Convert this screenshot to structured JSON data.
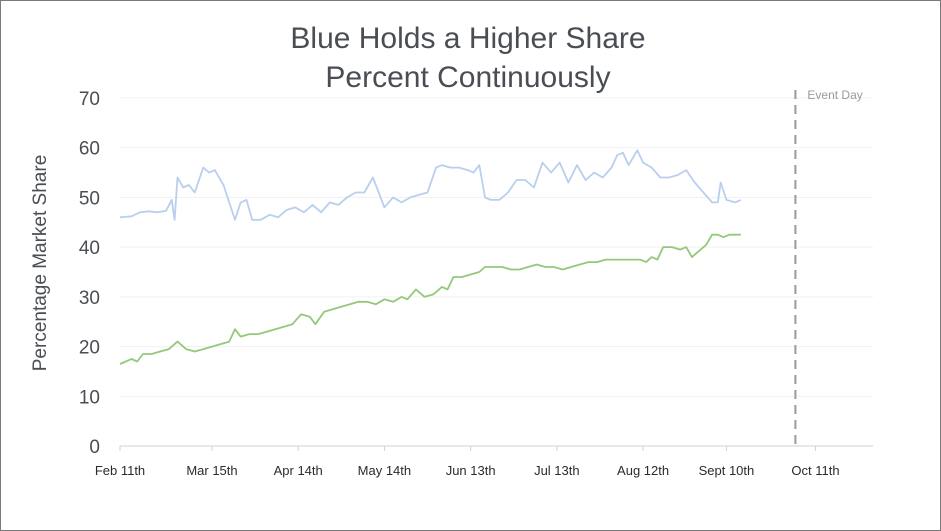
{
  "chart_data": {
    "type": "line",
    "title_lines": [
      "Blue Holds a Higher Share",
      "Percent Continuously"
    ],
    "ylabel": "Percentage Market Share",
    "ylim": [
      0,
      70
    ],
    "yticks": [
      0,
      10,
      20,
      30,
      40,
      50,
      60,
      70
    ],
    "xlim": [
      "2015-02-11",
      "2015-10-31"
    ],
    "xticks": [
      {
        "date": "2015-02-11",
        "label": "Feb 11th"
      },
      {
        "date": "2015-03-15",
        "label": "Mar 15th"
      },
      {
        "date": "2015-04-14",
        "label": "Apr 14th"
      },
      {
        "date": "2015-05-14",
        "label": "May 14th"
      },
      {
        "date": "2015-06-13",
        "label": "Jun 13th"
      },
      {
        "date": "2015-07-13",
        "label": "Jul 13th"
      },
      {
        "date": "2015-08-12",
        "label": "Aug 12th"
      },
      {
        "date": "2015-09-10",
        "label": "Sept 10th"
      },
      {
        "date": "2015-10-11",
        "label": "Oct 11th"
      }
    ],
    "grid": true,
    "event_marker": {
      "date": "2015-10-04",
      "label": "Event Day"
    },
    "series": [
      {
        "color": "#b9cfee",
        "points": [
          [
            "2015-02-11",
            46
          ],
          [
            "2015-02-15",
            46.2
          ],
          [
            "2015-02-18",
            47
          ],
          [
            "2015-02-21",
            47.2
          ],
          [
            "2015-02-24",
            47
          ],
          [
            "2015-02-27",
            47.3
          ],
          [
            "2015-03-01",
            49.5
          ],
          [
            "2015-03-02",
            45.5
          ],
          [
            "2015-03-03",
            54
          ],
          [
            "2015-03-05",
            52
          ],
          [
            "2015-03-07",
            52.5
          ],
          [
            "2015-03-09",
            51
          ],
          [
            "2015-03-12",
            56
          ],
          [
            "2015-03-14",
            55
          ],
          [
            "2015-03-16",
            55.5
          ],
          [
            "2015-03-19",
            52.5
          ],
          [
            "2015-03-21",
            49
          ],
          [
            "2015-03-23",
            45.5
          ],
          [
            "2015-03-25",
            49
          ],
          [
            "2015-03-27",
            49.5
          ],
          [
            "2015-03-29",
            45.5
          ],
          [
            "2015-04-01",
            45.5
          ],
          [
            "2015-04-04",
            46.5
          ],
          [
            "2015-04-07",
            46
          ],
          [
            "2015-04-10",
            47.5
          ],
          [
            "2015-04-13",
            48
          ],
          [
            "2015-04-16",
            47
          ],
          [
            "2015-04-19",
            48.5
          ],
          [
            "2015-04-22",
            47
          ],
          [
            "2015-04-25",
            49
          ],
          [
            "2015-04-28",
            48.5
          ],
          [
            "2015-05-01",
            50
          ],
          [
            "2015-05-04",
            51
          ],
          [
            "2015-05-07",
            51
          ],
          [
            "2015-05-10",
            54
          ],
          [
            "2015-05-12",
            51
          ],
          [
            "2015-05-14",
            48
          ],
          [
            "2015-05-17",
            50
          ],
          [
            "2015-05-20",
            49
          ],
          [
            "2015-05-23",
            50
          ],
          [
            "2015-05-26",
            50.5
          ],
          [
            "2015-05-29",
            51
          ],
          [
            "2015-06-01",
            56
          ],
          [
            "2015-06-03",
            56.5
          ],
          [
            "2015-06-06",
            56
          ],
          [
            "2015-06-09",
            56
          ],
          [
            "2015-06-12",
            55.5
          ],
          [
            "2015-06-14",
            55
          ],
          [
            "2015-06-16",
            56.5
          ],
          [
            "2015-06-18",
            50
          ],
          [
            "2015-06-20",
            49.5
          ],
          [
            "2015-06-23",
            49.5
          ],
          [
            "2015-06-26",
            51
          ],
          [
            "2015-06-29",
            53.5
          ],
          [
            "2015-07-02",
            53.5
          ],
          [
            "2015-07-05",
            52
          ],
          [
            "2015-07-08",
            57
          ],
          [
            "2015-07-11",
            55
          ],
          [
            "2015-07-14",
            57
          ],
          [
            "2015-07-17",
            53
          ],
          [
            "2015-07-20",
            56.5
          ],
          [
            "2015-07-23",
            53.5
          ],
          [
            "2015-07-26",
            55
          ],
          [
            "2015-07-29",
            54
          ],
          [
            "2015-08-01",
            56
          ],
          [
            "2015-08-03",
            58.5
          ],
          [
            "2015-08-05",
            59
          ],
          [
            "2015-08-07",
            56.5
          ],
          [
            "2015-08-10",
            59.5
          ],
          [
            "2015-08-12",
            57
          ],
          [
            "2015-08-15",
            56
          ],
          [
            "2015-08-18",
            54
          ],
          [
            "2015-08-21",
            54
          ],
          [
            "2015-08-24",
            54.5
          ],
          [
            "2015-08-27",
            55.5
          ],
          [
            "2015-08-30",
            53
          ],
          [
            "2015-09-02",
            51
          ],
          [
            "2015-09-05",
            49
          ],
          [
            "2015-09-07",
            49
          ],
          [
            "2015-09-08",
            53
          ],
          [
            "2015-09-10",
            49.5
          ],
          [
            "2015-09-13",
            49
          ],
          [
            "2015-09-15",
            49.5
          ]
        ]
      },
      {
        "color": "#93c97a",
        "points": [
          [
            "2015-02-11",
            16.5
          ],
          [
            "2015-02-13",
            17
          ],
          [
            "2015-02-15",
            17.5
          ],
          [
            "2015-02-17",
            17
          ],
          [
            "2015-02-19",
            18.5
          ],
          [
            "2015-02-22",
            18.5
          ],
          [
            "2015-02-25",
            19
          ],
          [
            "2015-02-28",
            19.5
          ],
          [
            "2015-03-03",
            21
          ],
          [
            "2015-03-06",
            19.5
          ],
          [
            "2015-03-09",
            19
          ],
          [
            "2015-03-12",
            19.5
          ],
          [
            "2015-03-15",
            20
          ],
          [
            "2015-03-18",
            20.5
          ],
          [
            "2015-03-21",
            21
          ],
          [
            "2015-03-23",
            23.5
          ],
          [
            "2015-03-25",
            22
          ],
          [
            "2015-03-28",
            22.5
          ],
          [
            "2015-03-31",
            22.5
          ],
          [
            "2015-04-03",
            23
          ],
          [
            "2015-04-06",
            23.5
          ],
          [
            "2015-04-09",
            24
          ],
          [
            "2015-04-12",
            24.5
          ],
          [
            "2015-04-15",
            26.5
          ],
          [
            "2015-04-18",
            26
          ],
          [
            "2015-04-20",
            24.5
          ],
          [
            "2015-04-23",
            27
          ],
          [
            "2015-04-26",
            27.5
          ],
          [
            "2015-04-29",
            28
          ],
          [
            "2015-05-02",
            28.5
          ],
          [
            "2015-05-05",
            29
          ],
          [
            "2015-05-08",
            29
          ],
          [
            "2015-05-11",
            28.5
          ],
          [
            "2015-05-14",
            29.5
          ],
          [
            "2015-05-17",
            29
          ],
          [
            "2015-05-20",
            30
          ],
          [
            "2015-05-22",
            29.5
          ],
          [
            "2015-05-25",
            31.5
          ],
          [
            "2015-05-28",
            30
          ],
          [
            "2015-05-31",
            30.5
          ],
          [
            "2015-06-03",
            32
          ],
          [
            "2015-06-05",
            31.5
          ],
          [
            "2015-06-07",
            34
          ],
          [
            "2015-06-10",
            34
          ],
          [
            "2015-06-13",
            34.5
          ],
          [
            "2015-06-16",
            35
          ],
          [
            "2015-06-18",
            36
          ],
          [
            "2015-06-21",
            36
          ],
          [
            "2015-06-24",
            36
          ],
          [
            "2015-06-27",
            35.5
          ],
          [
            "2015-06-30",
            35.5
          ],
          [
            "2015-07-03",
            36
          ],
          [
            "2015-07-06",
            36.5
          ],
          [
            "2015-07-09",
            36
          ],
          [
            "2015-07-12",
            36
          ],
          [
            "2015-07-15",
            35.5
          ],
          [
            "2015-07-18",
            36
          ],
          [
            "2015-07-21",
            36.5
          ],
          [
            "2015-07-24",
            37
          ],
          [
            "2015-07-27",
            37
          ],
          [
            "2015-07-30",
            37.5
          ],
          [
            "2015-08-02",
            37.5
          ],
          [
            "2015-08-05",
            37.5
          ],
          [
            "2015-08-08",
            37.5
          ],
          [
            "2015-08-11",
            37.5
          ],
          [
            "2015-08-13",
            37
          ],
          [
            "2015-08-15",
            38
          ],
          [
            "2015-08-17",
            37.5
          ],
          [
            "2015-08-19",
            40
          ],
          [
            "2015-08-22",
            40
          ],
          [
            "2015-08-25",
            39.5
          ],
          [
            "2015-08-27",
            40
          ],
          [
            "2015-08-29",
            38
          ],
          [
            "2015-09-01",
            39.5
          ],
          [
            "2015-09-03",
            40.5
          ],
          [
            "2015-09-05",
            42.5
          ],
          [
            "2015-09-07",
            42.5
          ],
          [
            "2015-09-09",
            42
          ],
          [
            "2015-09-11",
            42.5
          ],
          [
            "2015-09-15",
            42.5
          ]
        ]
      }
    ]
  }
}
